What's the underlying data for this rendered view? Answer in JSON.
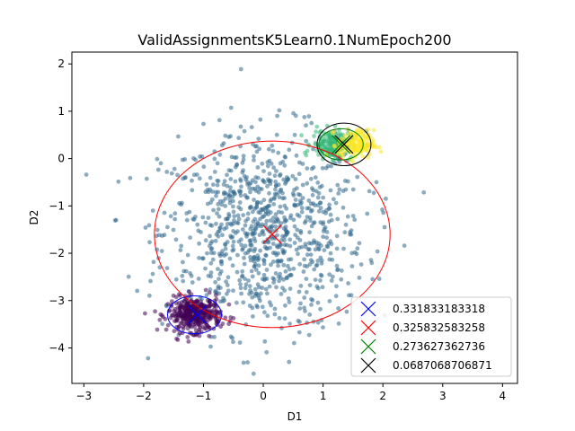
{
  "chart_data": {
    "type": "scatter",
    "title": "ValidAssignmentsK5Learn0.1NumEpoch200",
    "xlabel": "D1",
    "ylabel": "D2",
    "xlim": [
      -3.2,
      4.25
    ],
    "ylim": [
      -4.75,
      2.25
    ],
    "xticks": [
      -3,
      -2,
      -1,
      0,
      1,
      2,
      3,
      4
    ],
    "yticks": [
      -4,
      -3,
      -2,
      -1,
      0,
      1,
      2
    ],
    "grid": false,
    "legend_position": "lower-right",
    "clusters": [
      {
        "color": "#30678d",
        "center": [
          0.0,
          -1.55
        ],
        "spread": [
          0.85,
          1.05
        ],
        "count": 950
      },
      {
        "color": "#440154",
        "center": [
          -1.15,
          -3.3
        ],
        "spread": [
          0.22,
          0.18
        ],
        "count": 380
      },
      {
        "color": "#35b779",
        "center": [
          1.15,
          0.3
        ],
        "spread": [
          0.17,
          0.15
        ],
        "count": 190
      },
      {
        "color": "#fde725",
        "center": [
          1.55,
          0.3
        ],
        "spread": [
          0.15,
          0.15
        ],
        "count": 160
      }
    ],
    "ellipses": [
      {
        "center": [
          -1.15,
          -3.3
        ],
        "rx": 0.45,
        "ry": 0.4,
        "color": "#0000ff"
      },
      {
        "center": [
          0.15,
          -1.6
        ],
        "rx": 1.97,
        "ry": 1.97,
        "color": "#ff0000"
      },
      {
        "center": [
          1.3,
          0.3
        ],
        "rx": 0.37,
        "ry": 0.33,
        "color": "#008000"
      },
      {
        "center": [
          1.35,
          0.3
        ],
        "rx": 0.45,
        "ry": 0.45,
        "color": "#000000"
      }
    ],
    "centers": [
      {
        "x": -1.1,
        "y": -3.3,
        "color": "#0000ff"
      },
      {
        "x": 0.15,
        "y": -1.6,
        "color": "#ff0000"
      },
      {
        "x": 1.3,
        "y": 0.3,
        "color": "#008000"
      },
      {
        "x": 1.35,
        "y": 0.3,
        "color": "#000000"
      }
    ],
    "legend": [
      {
        "label": "0.331833183318",
        "color": "#0000ff"
      },
      {
        "label": "0.325832583258",
        "color": "#ff0000"
      },
      {
        "label": "0.273627362736",
        "color": "#008000"
      },
      {
        "label": "0.0687068706871",
        "color": "#000000"
      }
    ]
  }
}
